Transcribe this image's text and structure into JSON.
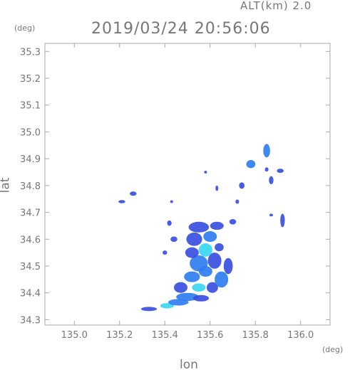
{
  "header": {
    "altitude_label": "ALT(km)  2.0",
    "timestamp": "2019/03/24  20:56:06"
  },
  "axes": {
    "y_unit": "(deg)",
    "x_unit": "(deg)",
    "x_label": "lon",
    "y_label": "lat"
  },
  "chart_data": {
    "type": "heatmap",
    "title": "2019/03/24  20:56:06",
    "xlabel": "lon",
    "ylabel": "lat",
    "xlim": [
      134.87,
      136.13
    ],
    "ylim": [
      34.28,
      35.33
    ],
    "x_ticks": [
      "135.0",
      "135.2",
      "135.4",
      "135.6",
      "135.8",
      "136.0"
    ],
    "y_ticks": [
      "34.3",
      "34.4",
      "34.5",
      "34.6",
      "34.7",
      "34.8",
      "34.9",
      "35.0",
      "35.1",
      "35.2",
      "35.3"
    ],
    "grid": false,
    "colors": {
      "low": "#3a4fe0",
      "mid": "#2f7df0",
      "high": "#3ad6f0",
      "frame": "#aaaaaa"
    },
    "echo_cells": [
      {
        "lon": 135.33,
        "lat": 34.34,
        "rx": 0.035,
        "ry": 0.008,
        "level": 1
      },
      {
        "lon": 135.41,
        "lat": 34.352,
        "rx": 0.03,
        "ry": 0.01,
        "level": 3
      },
      {
        "lon": 135.46,
        "lat": 34.365,
        "rx": 0.045,
        "ry": 0.012,
        "level": 2
      },
      {
        "lon": 135.5,
        "lat": 34.385,
        "rx": 0.05,
        "ry": 0.015,
        "level": 2
      },
      {
        "lon": 135.56,
        "lat": 34.38,
        "rx": 0.035,
        "ry": 0.012,
        "level": 1
      },
      {
        "lon": 135.47,
        "lat": 34.42,
        "rx": 0.03,
        "ry": 0.02,
        "level": 1
      },
      {
        "lon": 135.55,
        "lat": 34.42,
        "rx": 0.03,
        "ry": 0.015,
        "level": 3
      },
      {
        "lon": 135.61,
        "lat": 34.42,
        "rx": 0.025,
        "ry": 0.02,
        "level": 1
      },
      {
        "lon": 135.65,
        "lat": 34.45,
        "rx": 0.03,
        "ry": 0.03,
        "level": 2
      },
      {
        "lon": 135.52,
        "lat": 34.46,
        "rx": 0.035,
        "ry": 0.02,
        "level": 2
      },
      {
        "lon": 135.58,
        "lat": 34.48,
        "rx": 0.03,
        "ry": 0.02,
        "level": 2
      },
      {
        "lon": 135.55,
        "lat": 34.51,
        "rx": 0.04,
        "ry": 0.03,
        "level": 2
      },
      {
        "lon": 135.62,
        "lat": 34.52,
        "rx": 0.03,
        "ry": 0.03,
        "level": 1
      },
      {
        "lon": 135.68,
        "lat": 34.5,
        "rx": 0.02,
        "ry": 0.03,
        "level": 1
      },
      {
        "lon": 135.52,
        "lat": 34.55,
        "rx": 0.03,
        "ry": 0.02,
        "level": 1
      },
      {
        "lon": 135.58,
        "lat": 34.56,
        "rx": 0.03,
        "ry": 0.025,
        "level": 3
      },
      {
        "lon": 135.64,
        "lat": 34.57,
        "rx": 0.02,
        "ry": 0.015,
        "level": 1
      },
      {
        "lon": 135.53,
        "lat": 34.6,
        "rx": 0.035,
        "ry": 0.025,
        "level": 1
      },
      {
        "lon": 135.6,
        "lat": 34.61,
        "rx": 0.03,
        "ry": 0.02,
        "level": 2
      },
      {
        "lon": 135.55,
        "lat": 34.645,
        "rx": 0.045,
        "ry": 0.02,
        "level": 1
      },
      {
        "lon": 135.63,
        "lat": 34.65,
        "rx": 0.03,
        "ry": 0.015,
        "level": 1
      },
      {
        "lon": 135.7,
        "lat": 34.665,
        "rx": 0.015,
        "ry": 0.01,
        "level": 1
      },
      {
        "lon": 135.44,
        "lat": 34.6,
        "rx": 0.015,
        "ry": 0.01,
        "level": 1
      },
      {
        "lon": 135.4,
        "lat": 34.55,
        "rx": 0.01,
        "ry": 0.008,
        "level": 1
      },
      {
        "lon": 135.42,
        "lat": 34.66,
        "rx": 0.01,
        "ry": 0.01,
        "level": 1
      },
      {
        "lon": 135.21,
        "lat": 34.74,
        "rx": 0.015,
        "ry": 0.006,
        "level": 1
      },
      {
        "lon": 135.26,
        "lat": 34.77,
        "rx": 0.015,
        "ry": 0.008,
        "level": 1
      },
      {
        "lon": 135.43,
        "lat": 34.74,
        "rx": 0.006,
        "ry": 0.005,
        "level": 1
      },
      {
        "lon": 135.58,
        "lat": 34.85,
        "rx": 0.005,
        "ry": 0.005,
        "level": 1
      },
      {
        "lon": 135.63,
        "lat": 34.79,
        "rx": 0.006,
        "ry": 0.01,
        "level": 1
      },
      {
        "lon": 135.74,
        "lat": 34.8,
        "rx": 0.012,
        "ry": 0.012,
        "level": 1
      },
      {
        "lon": 135.72,
        "lat": 34.74,
        "rx": 0.008,
        "ry": 0.008,
        "level": 1
      },
      {
        "lon": 135.78,
        "lat": 34.88,
        "rx": 0.02,
        "ry": 0.015,
        "level": 2
      },
      {
        "lon": 135.85,
        "lat": 34.93,
        "rx": 0.015,
        "ry": 0.025,
        "level": 2
      },
      {
        "lon": 135.87,
        "lat": 34.82,
        "rx": 0.01,
        "ry": 0.015,
        "level": 1
      },
      {
        "lon": 135.91,
        "lat": 34.855,
        "rx": 0.015,
        "ry": 0.008,
        "level": 1
      },
      {
        "lon": 135.85,
        "lat": 34.86,
        "rx": 0.008,
        "ry": 0.008,
        "level": 1
      },
      {
        "lon": 135.92,
        "lat": 34.67,
        "rx": 0.01,
        "ry": 0.025,
        "level": 1
      },
      {
        "lon": 135.87,
        "lat": 34.69,
        "rx": 0.008,
        "ry": 0.005,
        "level": 1
      }
    ]
  }
}
